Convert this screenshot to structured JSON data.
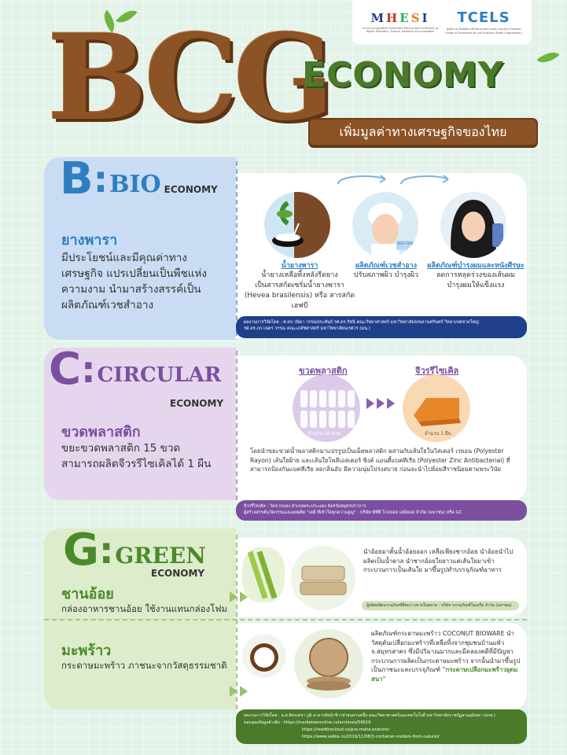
{
  "header": {
    "logos": [
      {
        "name": "MHESI",
        "sub": "กระทรวงการอุดมศึกษา วิทยาศาสตร์ วิจัยและนวัตกรรม Ministry of Higher Education, Science, Research and Innovation"
      },
      {
        "name": "TCELS",
        "sub": "ศูนย์ความเป็นเลิศด้านชีววิทยาศาสตร์ (องค์การมหาชน) Thailand Center of Excellence for Life Sciences (Public Organization)"
      }
    ],
    "title_letters": "BCG",
    "economy": "ECONOMY",
    "subtitle": "เพิ่มมูลค่าทางเศรษฐกิจของไทย"
  },
  "sections": {
    "bio": {
      "letter": "B",
      "colon": ":",
      "word": "BIO",
      "economy": "ECONOMY",
      "color": "#2d7fc1",
      "item_title": "ยางพารา",
      "item_desc": "มีประโยชน์และมีคุณค่าทางเศรษฐกิจ แปรเปลี่ยนเป็นพืชแห่งความงาม นำมาสร้างสรรค์เป็นผลิตภัณฑ์เวชสำอาง",
      "steps": [
        {
          "head": "น้ำยางพารา",
          "lines": [
            "น้ำยางเหลือทิ้งหลังรีดยาง",
            "เป็นสารสกัดเซรั่มน้ำยางพารา",
            "(Hevea brasilensis) หรือ สารสกัดเฮฟบี"
          ]
        },
        {
          "head": "ผลิตภัณฑ์เวชสำอาง",
          "lines": [
            "ปรับสภาพผิว บำรุงผิว"
          ]
        },
        {
          "head": "ผลิตภัณฑ์บำรุงผมและหนังศีรษะ",
          "lines": [
            "ลดการหลุดร่วงของเส้นผม",
            "บำรุงผมให้แข็งแรง"
          ]
        }
      ],
      "cream_label": "HEB CARE",
      "credit": [
        "ผลงานการวิจัยโดย : ศ.ดร.วนิดา วรรณประพันธ์ รศ.ดร.รัชนี คณะวิทยาศาสตร์ มหาวิทยาลัยสงขลานครินทร์ วิทยาเขตหาดใหญ่",
        "รศ.ดร.ภก.เนตร วรรณ คณะเภสัชศาสตร์ มหาวิทยาลัยนเรศวร (มน.)"
      ]
    },
    "circular": {
      "letter": "C",
      "colon": ":",
      "word": "CIRCULAR",
      "economy": "ECONOMY",
      "color": "#7b4fa0",
      "item_title": "ขวดพลาสติก",
      "item_desc": "ขยะขวดพลาสติก 15 ขวด สามารถผลิตจีวรรีไซเคิลได้ 1 ผืน",
      "from_label": "ขวดพลาสติก",
      "from_count": "จำนวน 15 ขวด",
      "to_label": "จีวรรีไซเคิล",
      "to_count": "จำนวน 1 ผืน",
      "detail": "โดยนำขยะขวดน้ำพลาสติกมาแปรรูปเป็นเม็ดพลาสติก ผสานกับเส้นใยในวิสเคอร์ เรยอน (Polyester Rayon) เส้นใยฝ้าย และเส้นใยโพลีเอสเตอร์ ซิงค์ แอนตี้แบคทีเรีย (Polyester Zinc Antibacterial) ที่สามารถป้องกันแบคทีเรีย ลดกลิ่นอับ มีความนุ่มโปร่งสบาย ก่อนจะนำไปย้อมสีราชนิยมตามพระวินัย",
      "credit": [
        "จีวรรีไซเคิล : วัดจากแดง อำเภอพระประแดง จังหวัดสมุทรปราการ",
        "ผู้สร้างสรรค์นวัตกรรมและผลผลิต \"เคมี ที่เข้าใจทุกความสูญ\" : บริษัท พีทีที โกลบอล เคมิคอล จำกัด (มหาชน) หรือ GC"
      ]
    },
    "green": {
      "letter": "G",
      "colon": ":",
      "word": "GREEN",
      "economy": "ECONOMY",
      "color": "#4a8a2a",
      "items": [
        {
          "title": "ชานอ้อย",
          "desc": "กล่องอาหารชานอ้อย ใช้งานแทนกล่องโฟม",
          "detail": "นำอ้อยมาคั้นน้ำอ้อยออก เหลือเพียงชากอ้อย นำอ้อยนำไปผลิตเป็นน้ำตาล นำชากอ้อยใยยาวแต่เส้นใยมาเข้ากระบวนการเป็นเส้นใย มาขึ้นรูปทำบรรจุภัณฑ์อาหาร",
          "credit": "ผู้ผลิตผลิตบรรจุภัณฑ์ที่พบวางขายในตลาด : บริษัท บรรจุภัณฑ์ในเครือ จำกัด (มหาชน)"
        },
        {
          "title": "มะพร้าว",
          "desc": "กระดาษมะพร้าว ภาชนะจากวัสดุธรรมชาติ",
          "detail_pre": "ผลิตภัณฑ์กระดาษมะพร้าว COCONUT BIOWARE นำวัสดุต้นเปลือกมะพร้าวที่เหลือทิ้งจากชุมชนบ้านแพ้ว จ.สมุทรสาคร ซึ่งมีปริมาณมากและมีคลองคดีที่มีปัญหา กระบวนการผลิตเป็นกระดาษมะพร้าว จากนั้นนำมาขึ้นรูปเป็นภาชนะและบรรจุภัณฑ์",
          "detail_highlight": "\"กระดาษเปลือกมะพร้าวยุตมสนา\""
        }
      ],
      "credit": [
        "ผลงานการวิจัยโดย : น.ส.จิตรเลขา ภูมิ อาจารย์หน้าข้าวป่าสนสวนหนึ่ง คณะวิทยาศาสตร์และเทคโนโลยี มหาวิทยาลัยราชภัฏสวนสุนันทา (มรส.)",
        "ขอบคุณข้อมูลอ้างอิง : https://marketeeronline.co/archives/59619",
        "https://readthecloud.co/pra-maha-pranom/",
        "https://www.salika.co/2019/11/08/3-container-models-from-natural/"
      ]
    }
  },
  "colors": {
    "bio_left": "#c9dcf3",
    "circular_left": "#e5d6ee",
    "green_left": "#ddeccb",
    "brown": "#8b5326",
    "economy_green": "#4a7a2a"
  },
  "icons": [
    "rubber-tree-icon",
    "spa-woman-icon",
    "shampoo-woman-icon",
    "bottle-icon",
    "robe-icon",
    "sugarcane-icon",
    "food-box-icon",
    "coconut-icon",
    "plates-icon",
    "leaf-icon",
    "arrow-icon"
  ]
}
